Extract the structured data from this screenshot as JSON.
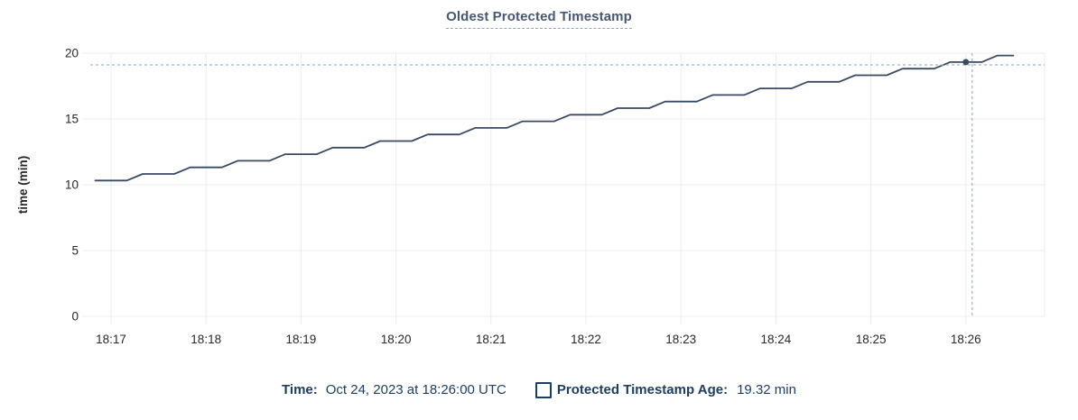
{
  "title": "Oldest Protected Timestamp",
  "legend": {
    "time_label": "Time:",
    "time_value": "Oct 24, 2023 at 18:26:00 UTC",
    "series_label": "Protected Timestamp Age:",
    "series_value": "19.32 min"
  },
  "colors": {
    "title": "#475872",
    "title_underline": "#93a4ba",
    "grid": "#ececec",
    "axis_text": "#26282a",
    "line": "#394a63",
    "crosshair": "#a3b8c4",
    "legend_text": "#1c3e63",
    "background": "#ffffff"
  },
  "chart_data": {
    "type": "line",
    "title": "Oldest Protected Timestamp",
    "xlabel": "",
    "ylabel": "time (min)",
    "ylim": [
      0,
      20
    ],
    "grid": true,
    "y_ticks": [
      0,
      5,
      10,
      15,
      20
    ],
    "x_unit": "seconds after 18:16:00 UTC",
    "x_ticks": [
      {
        "label": "18:17",
        "t": 60
      },
      {
        "label": "18:18",
        "t": 120
      },
      {
        "label": "18:19",
        "t": 180
      },
      {
        "label": "18:20",
        "t": 240
      },
      {
        "label": "18:21",
        "t": 300
      },
      {
        "label": "18:22",
        "t": 360
      },
      {
        "label": "18:23",
        "t": 420
      },
      {
        "label": "18:24",
        "t": 480
      },
      {
        "label": "18:25",
        "t": 540
      },
      {
        "label": "18:26",
        "t": 600
      }
    ],
    "series": [
      {
        "name": "Protected Timestamp Age",
        "points": [
          [
            50,
            10.32
          ],
          [
            70,
            10.32
          ],
          [
            80,
            10.82
          ],
          [
            100,
            10.82
          ],
          [
            110,
            11.32
          ],
          [
            130,
            11.32
          ],
          [
            140,
            11.82
          ],
          [
            160,
            11.82
          ],
          [
            170,
            12.32
          ],
          [
            190,
            12.32
          ],
          [
            200,
            12.82
          ],
          [
            220,
            12.82
          ],
          [
            230,
            13.32
          ],
          [
            250,
            13.32
          ],
          [
            260,
            13.82
          ],
          [
            280,
            13.82
          ],
          [
            290,
            14.32
          ],
          [
            310,
            14.32
          ],
          [
            320,
            14.82
          ],
          [
            340,
            14.82
          ],
          [
            350,
            15.32
          ],
          [
            370,
            15.32
          ],
          [
            380,
            15.82
          ],
          [
            400,
            15.82
          ],
          [
            410,
            16.32
          ],
          [
            430,
            16.32
          ],
          [
            440,
            16.82
          ],
          [
            460,
            16.82
          ],
          [
            470,
            17.32
          ],
          [
            490,
            17.32
          ],
          [
            500,
            17.82
          ],
          [
            520,
            17.82
          ],
          [
            530,
            18.32
          ],
          [
            550,
            18.32
          ],
          [
            560,
            18.82
          ],
          [
            580,
            18.82
          ],
          [
            590,
            19.32
          ],
          [
            610,
            19.32
          ],
          [
            620,
            19.82
          ],
          [
            630,
            19.82
          ]
        ]
      }
    ],
    "hover": {
      "snap_time": "18:26:00",
      "snap_t": 600,
      "snap_value": 19.32,
      "cursor_t": 604,
      "cursor_value": 19.11
    },
    "legend_position": "bottom-center"
  }
}
